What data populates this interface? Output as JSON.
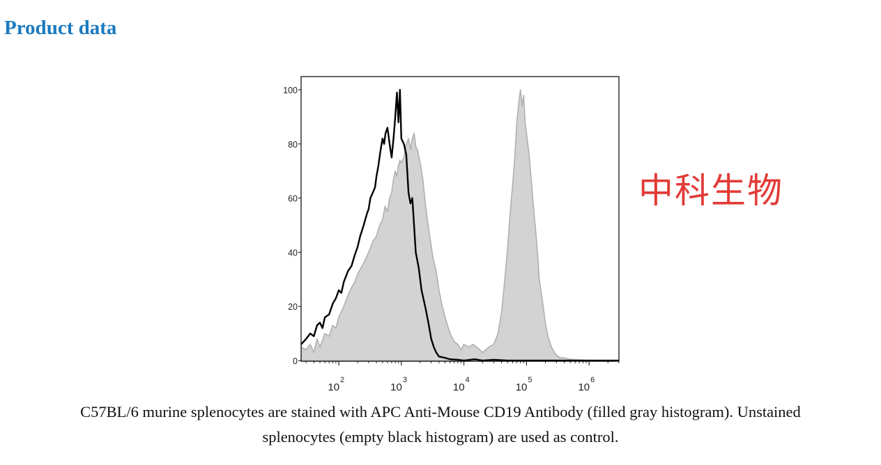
{
  "header": {
    "title": "Product data"
  },
  "watermark": {
    "text": "中科生物"
  },
  "caption": {
    "line1": "C57BL/6 murine splenocytes are stained with APC Anti-Mouse CD19 Antibody (filled gray histogram). Unstained",
    "line2": "splenocytes (empty black histogram) are used as control."
  },
  "chart_data": {
    "type": "area",
    "title": "",
    "xlabel": "",
    "ylabel": "",
    "x_scale": "log10",
    "xlim": [
      25,
      3000000
    ],
    "ylim": [
      0,
      100
    ],
    "grid": false,
    "legend": "none",
    "y_ticks": [
      0,
      20,
      40,
      60,
      80,
      100
    ],
    "x_ticks": [
      {
        "base": "10",
        "exp": "2"
      },
      {
        "base": "10",
        "exp": "3"
      },
      {
        "base": "10",
        "exp": "4"
      },
      {
        "base": "10",
        "exp": "5"
      },
      {
        "base": "10",
        "exp": "6"
      }
    ],
    "colors": {
      "stained_fill": "#d3d3d3",
      "stained_stroke": "#b0b0b0",
      "control_line": "#000000",
      "axis": "#000000"
    },
    "series": [
      {
        "style": "filled-gray",
        "x": [
          25,
          30,
          35,
          40,
          45,
          50,
          60,
          70,
          80,
          90,
          100,
          120,
          140,
          160,
          180,
          200,
          250,
          300,
          350,
          400,
          450,
          500,
          550,
          600,
          650,
          700,
          750,
          800,
          850,
          900,
          950,
          1000,
          1100,
          1200,
          1300,
          1400,
          1500,
          1600,
          1700,
          1800,
          2000,
          2200,
          2500,
          2800,
          3200,
          3600,
          4000,
          4500,
          5000,
          6000,
          7000,
          8000,
          9000,
          10000,
          12000,
          14000,
          16000,
          20000,
          25000,
          30000,
          35000,
          40000,
          45000,
          50000,
          55000,
          60000,
          65000,
          70000,
          75000,
          80000,
          85000,
          90000,
          95000,
          100000,
          110000,
          120000,
          130000,
          140000,
          150000,
          160000,
          180000,
          200000,
          220000,
          250000,
          280000,
          300000,
          350000,
          400000,
          500000,
          600000,
          800000,
          1000000,
          3000000
        ],
        "y": [
          5,
          4,
          6,
          3,
          8,
          5,
          10,
          9,
          13,
          12,
          16,
          20,
          24,
          27,
          29,
          32,
          36,
          40,
          44,
          46,
          50,
          52,
          57,
          55,
          60,
          62,
          67,
          70,
          68,
          72,
          74,
          73,
          75,
          80,
          82,
          78,
          82,
          84,
          79,
          78,
          73,
          67,
          55,
          47,
          38,
          33,
          26,
          20,
          16,
          10,
          7,
          6,
          4,
          6,
          5,
          6,
          5,
          3,
          5,
          6,
          10,
          18,
          30,
          42,
          55,
          65,
          75,
          88,
          95,
          100,
          94,
          98,
          88,
          84,
          76,
          66,
          56,
          48,
          40,
          30,
          22,
          14,
          9,
          5,
          3,
          2,
          1,
          1,
          0.5,
          0.3,
          0.2,
          0,
          0
        ]
      },
      {
        "style": "empty-black",
        "x": [
          25,
          30,
          35,
          40,
          45,
          50,
          55,
          60,
          70,
          80,
          90,
          100,
          110,
          120,
          140,
          160,
          180,
          200,
          220,
          250,
          280,
          300,
          320,
          350,
          380,
          400,
          430,
          460,
          500,
          530,
          560,
          600,
          650,
          700,
          750,
          800,
          850,
          900,
          950,
          1000,
          1100,
          1200,
          1300,
          1400,
          1500,
          1700,
          1900,
          2100,
          2400,
          2700,
          3000,
          3300,
          3600,
          4000,
          5000,
          6000,
          8000,
          10000,
          15000,
          20000,
          30000,
          50000,
          3000000
        ],
        "y": [
          6,
          8,
          10,
          9,
          13,
          14,
          12,
          16,
          17,
          21,
          23,
          26,
          25,
          29,
          33,
          35,
          39,
          42,
          46,
          50,
          54,
          56,
          60,
          62,
          64,
          68,
          72,
          77,
          82,
          80,
          84,
          86,
          80,
          75,
          82,
          90,
          99,
          88,
          100,
          82,
          80,
          76,
          62,
          58,
          60,
          40,
          34,
          26,
          20,
          14,
          8,
          5,
          3,
          1.5,
          1,
          0.5,
          0.3,
          0,
          0.5,
          0,
          0.3,
          0,
          0
        ]
      }
    ]
  }
}
